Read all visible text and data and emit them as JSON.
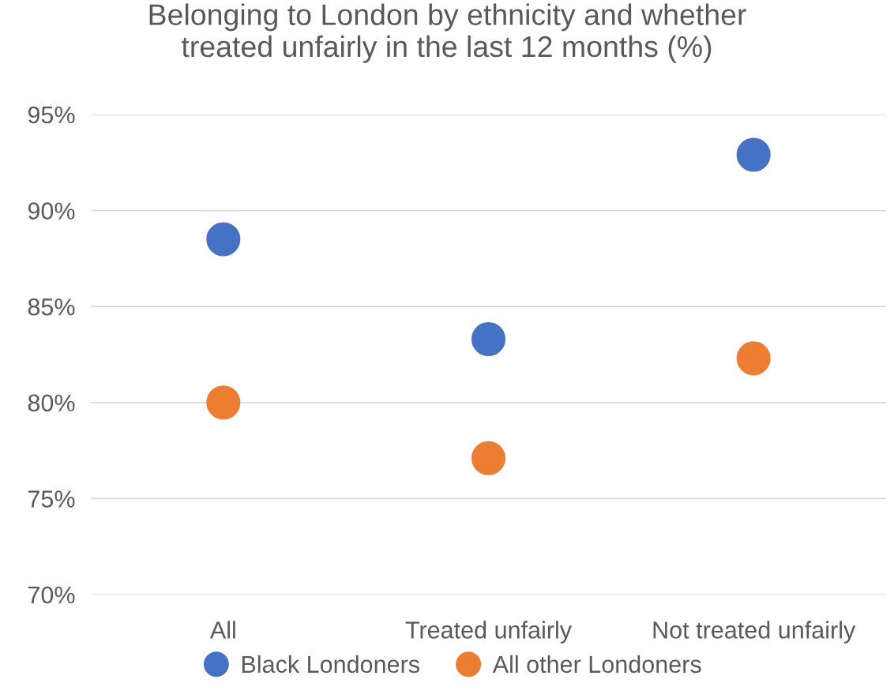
{
  "chart_data": {
    "type": "scatter",
    "title": "Belonging to London by ethnicity and whether\ntreated unfairly in the last 12 months (%)",
    "categories": [
      "All",
      "Treated unfairly",
      "Not treated unfairly"
    ],
    "series": [
      {
        "name": "Black Londoners",
        "color": "#4472c4",
        "values": [
          88.5,
          83.3,
          92.9
        ]
      },
      {
        "name": "All other Londoners",
        "color": "#ed7d31",
        "values": [
          80.0,
          77.1,
          82.3
        ]
      }
    ],
    "ylim": [
      70,
      95
    ],
    "yticks": [
      {
        "value": 70,
        "label": "70%"
      },
      {
        "value": 75,
        "label": "75%"
      },
      {
        "value": 80,
        "label": "80%"
      },
      {
        "value": 85,
        "label": "85%"
      },
      {
        "value": 90,
        "label": "90%"
      },
      {
        "value": 95,
        "label": "95%"
      }
    ],
    "grid": "y",
    "legend": "bottom",
    "marker": "circle"
  }
}
